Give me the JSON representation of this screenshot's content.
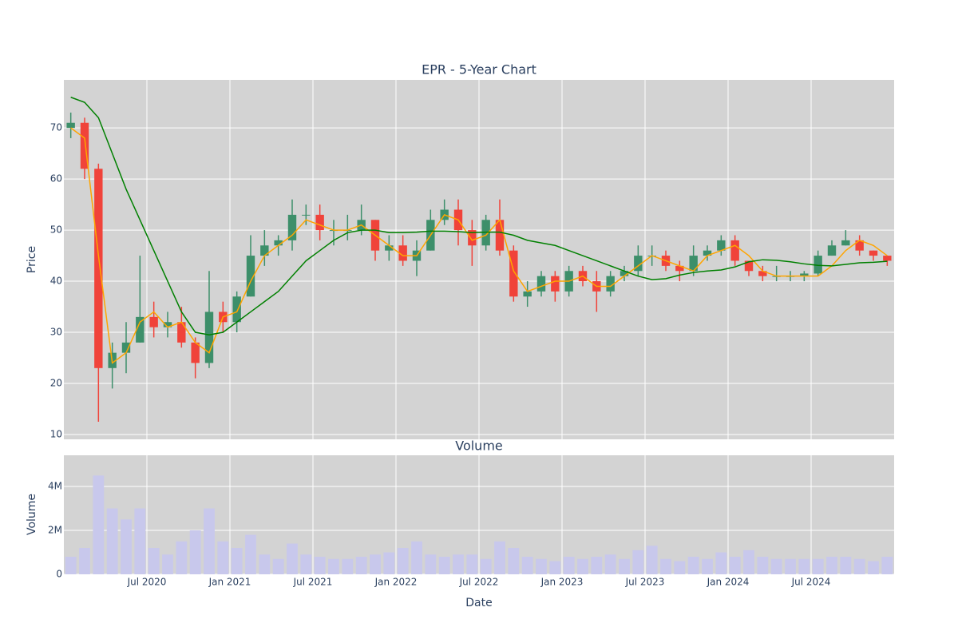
{
  "chart_data": [
    {
      "type": "candlestick",
      "title": "EPR - 5-Year Chart",
      "y_label": "Price",
      "x": [
        "2020-01",
        "2020-02",
        "2020-03",
        "2020-04",
        "2020-05",
        "2020-06",
        "2020-07",
        "2020-08",
        "2020-09",
        "2020-10",
        "2020-11",
        "2020-12",
        "2021-01",
        "2021-02",
        "2021-03",
        "2021-04",
        "2021-05",
        "2021-06",
        "2021-07",
        "2021-08",
        "2021-09",
        "2021-10",
        "2021-11",
        "2021-12",
        "2022-01",
        "2022-02",
        "2022-03",
        "2022-04",
        "2022-05",
        "2022-06",
        "2022-07",
        "2022-08",
        "2022-09",
        "2022-10",
        "2022-11",
        "2022-12",
        "2023-01",
        "2023-02",
        "2023-03",
        "2023-04",
        "2023-05",
        "2023-06",
        "2023-07",
        "2023-08",
        "2023-09",
        "2023-10",
        "2023-11",
        "2023-12",
        "2024-01",
        "2024-02",
        "2024-03",
        "2024-04",
        "2024-05",
        "2024-06",
        "2024-07",
        "2024-08",
        "2024-09",
        "2024-10",
        "2024-11",
        "2024-12"
      ],
      "open": [
        70,
        71,
        62,
        23,
        26,
        28,
        33,
        31,
        32,
        28,
        24,
        34,
        32,
        37,
        45,
        47,
        48,
        53,
        53,
        50,
        50,
        50,
        52,
        46,
        47,
        44,
        46,
        52,
        54,
        50,
        47,
        52,
        46,
        37,
        38,
        41,
        38,
        42,
        40,
        38,
        41,
        42,
        45,
        45,
        43,
        42,
        45,
        46,
        48,
        44,
        42,
        41,
        41,
        41,
        41.5,
        45,
        47,
        48,
        46,
        45
      ],
      "high": [
        73,
        72,
        63,
        28,
        32,
        45,
        36,
        34,
        35,
        29,
        42,
        36,
        38,
        49,
        50,
        49,
        56,
        55,
        55,
        52,
        53,
        55,
        52,
        49,
        49,
        48,
        54,
        56,
        56,
        52,
        53,
        56,
        47,
        40,
        42,
        42,
        43,
        43,
        42,
        42,
        43,
        47,
        47,
        46,
        44,
        47,
        47,
        49,
        49,
        44,
        43,
        43,
        42,
        42,
        46,
        48,
        50,
        49,
        46,
        45
      ],
      "low": [
        68,
        60,
        12.5,
        19,
        22,
        28,
        29,
        29,
        27,
        21,
        23,
        30,
        30,
        37,
        43,
        45,
        46,
        51,
        48,
        47,
        48,
        49,
        44,
        44,
        43,
        41,
        46,
        51,
        47,
        43,
        46,
        45,
        36,
        35,
        37,
        36,
        37,
        39,
        34,
        37,
        40,
        41,
        43,
        42,
        40,
        41,
        44,
        45,
        43,
        41,
        40,
        40,
        40,
        40,
        41,
        45,
        47,
        45,
        44,
        43
      ],
      "close": [
        71,
        62,
        23,
        26,
        28,
        33,
        31,
        32,
        28,
        24,
        34,
        32,
        37,
        45,
        47,
        48,
        53,
        53,
        50,
        50,
        50,
        52,
        46,
        47,
        44,
        46,
        52,
        54,
        50,
        47,
        52,
        46,
        37,
        38,
        41,
        38,
        42,
        40,
        38,
        41,
        42,
        45,
        45,
        43,
        42,
        45,
        46,
        48,
        44,
        42,
        41,
        41,
        41,
        41.5,
        45,
        47,
        48,
        46,
        45,
        44
      ],
      "increasing_color": "#3d8f6a",
      "decreasing_color": "#f0433a",
      "series": [
        {
          "color": "#ffa500",
          "values": [
            70,
            68,
            45,
            24,
            26,
            32,
            34,
            31,
            32,
            28,
            26,
            33,
            34,
            40,
            45,
            47,
            49,
            52,
            51,
            50,
            50,
            51,
            49,
            47,
            45,
            45,
            49,
            53,
            52,
            48,
            49,
            52,
            42,
            38,
            39,
            40,
            40,
            41,
            39,
            39,
            41,
            43,
            45,
            44,
            43,
            42,
            45,
            46,
            47,
            45,
            42,
            41,
            41,
            41,
            41,
            43,
            46,
            48,
            47,
            45
          ]
        },
        {
          "color": "#008000",
          "values": [
            76,
            75,
            72,
            65,
            58,
            52,
            46,
            40,
            34,
            30,
            29.5,
            30,
            32,
            34,
            36,
            38,
            41,
            44,
            46,
            48,
            49.5,
            50,
            50,
            49.5,
            49.5,
            49.6,
            49.8,
            49.8,
            49.7,
            49.5,
            49.6,
            49.6,
            49,
            48,
            47.5,
            47,
            46,
            45,
            44,
            43,
            42,
            41,
            40.3,
            40.5,
            41.2,
            41.7,
            42,
            42.2,
            42.8,
            43.8,
            44.2,
            44.1,
            43.8,
            43.4,
            43.1,
            43,
            43.3,
            43.6,
            43.7,
            43.9
          ]
        }
      ],
      "xlim": [
        "2020-01",
        "2025-01"
      ],
      "ylim": [
        9.06,
        79.4
      ],
      "yticks": [
        10,
        20,
        30,
        40,
        50,
        60,
        70
      ],
      "grid": true,
      "background": "#d3d3d3"
    },
    {
      "type": "bar",
      "title": "Volume",
      "x_label": "Date",
      "y_label": "Volume",
      "x": [
        "2020-01",
        "2020-02",
        "2020-03",
        "2020-04",
        "2020-05",
        "2020-06",
        "2020-07",
        "2020-08",
        "2020-09",
        "2020-10",
        "2020-11",
        "2020-12",
        "2021-01",
        "2021-02",
        "2021-03",
        "2021-04",
        "2021-05",
        "2021-06",
        "2021-07",
        "2021-08",
        "2021-09",
        "2021-10",
        "2021-11",
        "2021-12",
        "2022-01",
        "2022-02",
        "2022-03",
        "2022-04",
        "2022-05",
        "2022-06",
        "2022-07",
        "2022-08",
        "2022-09",
        "2022-10",
        "2022-11",
        "2022-12",
        "2023-01",
        "2023-02",
        "2023-03",
        "2023-04",
        "2023-05",
        "2023-06",
        "2023-07",
        "2023-08",
        "2023-09",
        "2023-10",
        "2023-11",
        "2023-12",
        "2024-01",
        "2024-02",
        "2024-03",
        "2024-04",
        "2024-05",
        "2024-06",
        "2024-07",
        "2024-08",
        "2024-09",
        "2024-10",
        "2024-11",
        "2024-12"
      ],
      "values": [
        800000,
        1200000,
        4500000,
        3000000,
        2500000,
        3000000,
        1200000,
        900000,
        1500000,
        2000000,
        3000000,
        1500000,
        1200000,
        1800000,
        900000,
        700000,
        1400000,
        900000,
        800000,
        700000,
        700000,
        800000,
        900000,
        1000000,
        1200000,
        1500000,
        900000,
        800000,
        900000,
        900000,
        700000,
        1500000,
        1200000,
        800000,
        700000,
        600000,
        800000,
        700000,
        800000,
        900000,
        700000,
        1100000,
        1300000,
        700000,
        600000,
        800000,
        700000,
        1000000,
        800000,
        1100000,
        800000,
        700000,
        700000,
        700000,
        700000,
        800000,
        800000,
        700000,
        600000,
        800000
      ],
      "color": "#c8c8ec",
      "xlim": [
        "2020-01",
        "2025-01"
      ],
      "ylim": [
        0,
        5420000
      ],
      "yticks": [
        0,
        {
          "value": 2000000,
          "label": "2M"
        },
        {
          "value": 4000000,
          "label": "4M"
        }
      ],
      "xticks": [
        {
          "value": "2020-07",
          "label": "Jul 2020"
        },
        {
          "value": "2021-01",
          "label": "Jan 2021"
        },
        {
          "value": "2021-07",
          "label": "Jul 2021"
        },
        {
          "value": "2022-01",
          "label": "Jan 2022"
        },
        {
          "value": "2022-07",
          "label": "Jul 2022"
        },
        {
          "value": "2023-01",
          "label": "Jan 2023"
        },
        {
          "value": "2023-07",
          "label": "Jul 2023"
        },
        {
          "value": "2024-01",
          "label": "Jan 2024"
        },
        {
          "value": "2024-07",
          "label": "Jul 2024"
        }
      ],
      "grid": true,
      "background": "#d3d3d3"
    }
  ]
}
